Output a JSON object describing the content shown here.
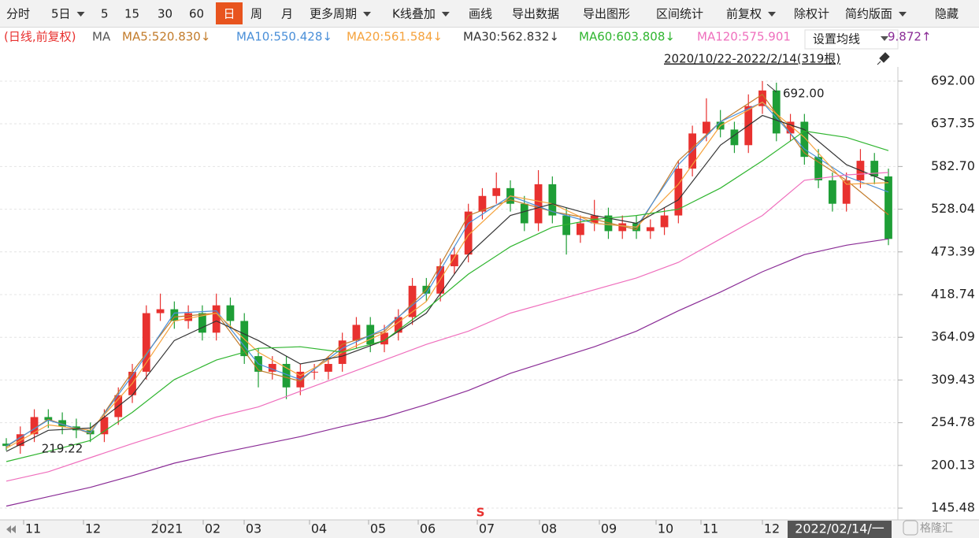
{
  "toolbar": {
    "items": [
      "分时",
      "5日",
      "5",
      "15",
      "30",
      "60",
      "日",
      "周",
      "月",
      "更多周期",
      "K线叠加",
      "画线",
      "导出数据",
      "导出图形",
      "区间统计",
      "前复权",
      "除权计",
      "简约版面",
      "隐藏"
    ],
    "active": 6
  },
  "chart_data": {
    "type": "candlestick",
    "period_label": "(日线,前复权)",
    "ma_label": "MA",
    "ma_button": "设置均线",
    "range_label": "2020/10/22-2022/2/14(319根)",
    "open": [
      228,
      225,
      240,
      262,
      258,
      250,
      245,
      240,
      262,
      290,
      320,
      395,
      400,
      385,
      395,
      370,
      405,
      385,
      340,
      320,
      330,
      300,
      320,
      320,
      330,
      360,
      380,
      355,
      370,
      390,
      430,
      420,
      455,
      470,
      525,
      545,
      555,
      535,
      510,
      560,
      520,
      495,
      510,
      520,
      500,
      510,
      500,
      505,
      520,
      580,
      625,
      640,
      630,
      610,
      660,
      680,
      625,
      640,
      595,
      565,
      535,
      565,
      590,
      570
    ],
    "high": [
      235,
      250,
      272,
      272,
      268,
      260,
      255,
      272,
      300,
      330,
      405,
      420,
      410,
      405,
      405,
      420,
      415,
      395,
      350,
      340,
      340,
      330,
      330,
      340,
      370,
      390,
      390,
      380,
      400,
      440,
      440,
      465,
      480,
      535,
      555,
      575,
      565,
      545,
      578,
      570,
      530,
      520,
      540,
      530,
      520,
      520,
      515,
      530,
      590,
      635,
      670,
      655,
      640,
      675,
      692,
      690,
      650,
      650,
      605,
      575,
      575,
      605,
      600,
      580
    ],
    "low": [
      219.22,
      215,
      230,
      248,
      240,
      235,
      230,
      230,
      252,
      280,
      310,
      385,
      375,
      375,
      360,
      360,
      375,
      330,
      300,
      310,
      285,
      290,
      310,
      310,
      320,
      350,
      345,
      345,
      360,
      380,
      410,
      410,
      445,
      460,
      515,
      535,
      525,
      500,
      500,
      510,
      470,
      485,
      500,
      490,
      490,
      490,
      490,
      495,
      510,
      570,
      615,
      620,
      600,
      600,
      650,
      615,
      615,
      585,
      555,
      525,
      525,
      555,
      560,
      482
    ],
    "close": [
      225,
      240,
      262,
      258,
      250,
      245,
      240,
      262,
      290,
      320,
      395,
      400,
      385,
      395,
      370,
      405,
      385,
      340,
      320,
      330,
      300,
      320,
      320,
      330,
      360,
      380,
      355,
      370,
      390,
      430,
      420,
      455,
      470,
      525,
      545,
      555,
      535,
      510,
      560,
      520,
      495,
      510,
      520,
      500,
      510,
      500,
      505,
      520,
      580,
      625,
      640,
      630,
      610,
      660,
      680,
      625,
      640,
      595,
      565,
      535,
      565,
      590,
      570,
      490
    ],
    "up_color": "#e8312f",
    "down_color": "#1e9e36",
    "series": [
      {
        "name": "MA5:520.830↓",
        "color": "#c27b2a",
        "values": [
          224,
          259,
          241,
          320,
          390,
          395,
          322,
          308,
          355,
          372,
          425,
          520,
          540,
          525,
          515,
          502,
          590,
          640,
          675,
          600,
          565,
          521
        ]
      },
      {
        "name": "MA10:550.428↓",
        "color": "#4a8fd8",
        "values": [
          225,
          258,
          242,
          315,
          395,
          398,
          330,
          310,
          350,
          375,
          420,
          510,
          545,
          525,
          510,
          505,
          585,
          640,
          665,
          605,
          570,
          550
        ]
      },
      {
        "name": "MA20:561.584↓",
        "color": "#f5a23c",
        "values": [
          222,
          252,
          245,
          305,
          385,
          395,
          345,
          315,
          345,
          370,
          410,
          495,
          545,
          535,
          510,
          505,
          560,
          635,
          665,
          620,
          560,
          562
        ]
      },
      {
        "name": "MA30:562.832↓",
        "color": "#333333",
        "values": [
          218,
          245,
          248,
          290,
          360,
          385,
          360,
          330,
          340,
          360,
          395,
          470,
          520,
          535,
          520,
          510,
          540,
          610,
          648,
          630,
          585,
          563
        ]
      },
      {
        "name": "MA60:603.808↓",
        "color": "#2fb52f",
        "values": [
          205,
          218,
          232,
          268,
          310,
          335,
          350,
          352,
          345,
          360,
          400,
          445,
          480,
          505,
          515,
          520,
          528,
          555,
          590,
          628,
          620,
          603
        ]
      },
      {
        "name": "MA120:575.901",
        "color": "#ef6fbd",
        "values": [
          180,
          192,
          210,
          228,
          245,
          262,
          275,
          295,
          315,
          335,
          355,
          372,
          395,
          410,
          425,
          440,
          460,
          490,
          520,
          565,
          572,
          575
        ]
      },
      {
        "name": "9.872↑",
        "color": "#8a2c96",
        "values": [
          148,
          160,
          172,
          187,
          203,
          215,
          226,
          237,
          250,
          262,
          278,
          296,
          318,
          335,
          352,
          372,
          398,
          422,
          448,
          470,
          482,
          490
        ]
      }
    ],
    "ylim": [
      130.4,
      710.1
    ],
    "yticks": [
      {
        "value": 692,
        "label": "692.00"
      },
      {
        "value": 637.35,
        "label": "637.35"
      },
      {
        "value": 582.7,
        "label": "582.70"
      },
      {
        "value": 528.04,
        "label": "528.04"
      },
      {
        "value": 473.39,
        "label": "473.39"
      },
      {
        "value": 418.74,
        "label": "418.74"
      },
      {
        "value": 364.09,
        "label": "364.09"
      },
      {
        "value": 309.43,
        "label": "309.43"
      },
      {
        "value": 254.78,
        "label": "254.78"
      },
      {
        "value": 200.13,
        "label": "200.13"
      },
      {
        "value": 145.48,
        "label": "145.48"
      }
    ],
    "grid": true,
    "x_labels": [
      "11",
      "12",
      "2021",
      "02",
      "03",
      "04",
      "05",
      "06",
      "07",
      "08",
      "09",
      "10",
      "11",
      "12"
    ],
    "cursor_label": "2022/02/14/一",
    "annotations": [
      {
        "text": "692.00",
        "value": 692
      },
      {
        "text": "219.22",
        "value": 219.22
      }
    ],
    "marker": "S"
  },
  "watermark": "格隆汇"
}
